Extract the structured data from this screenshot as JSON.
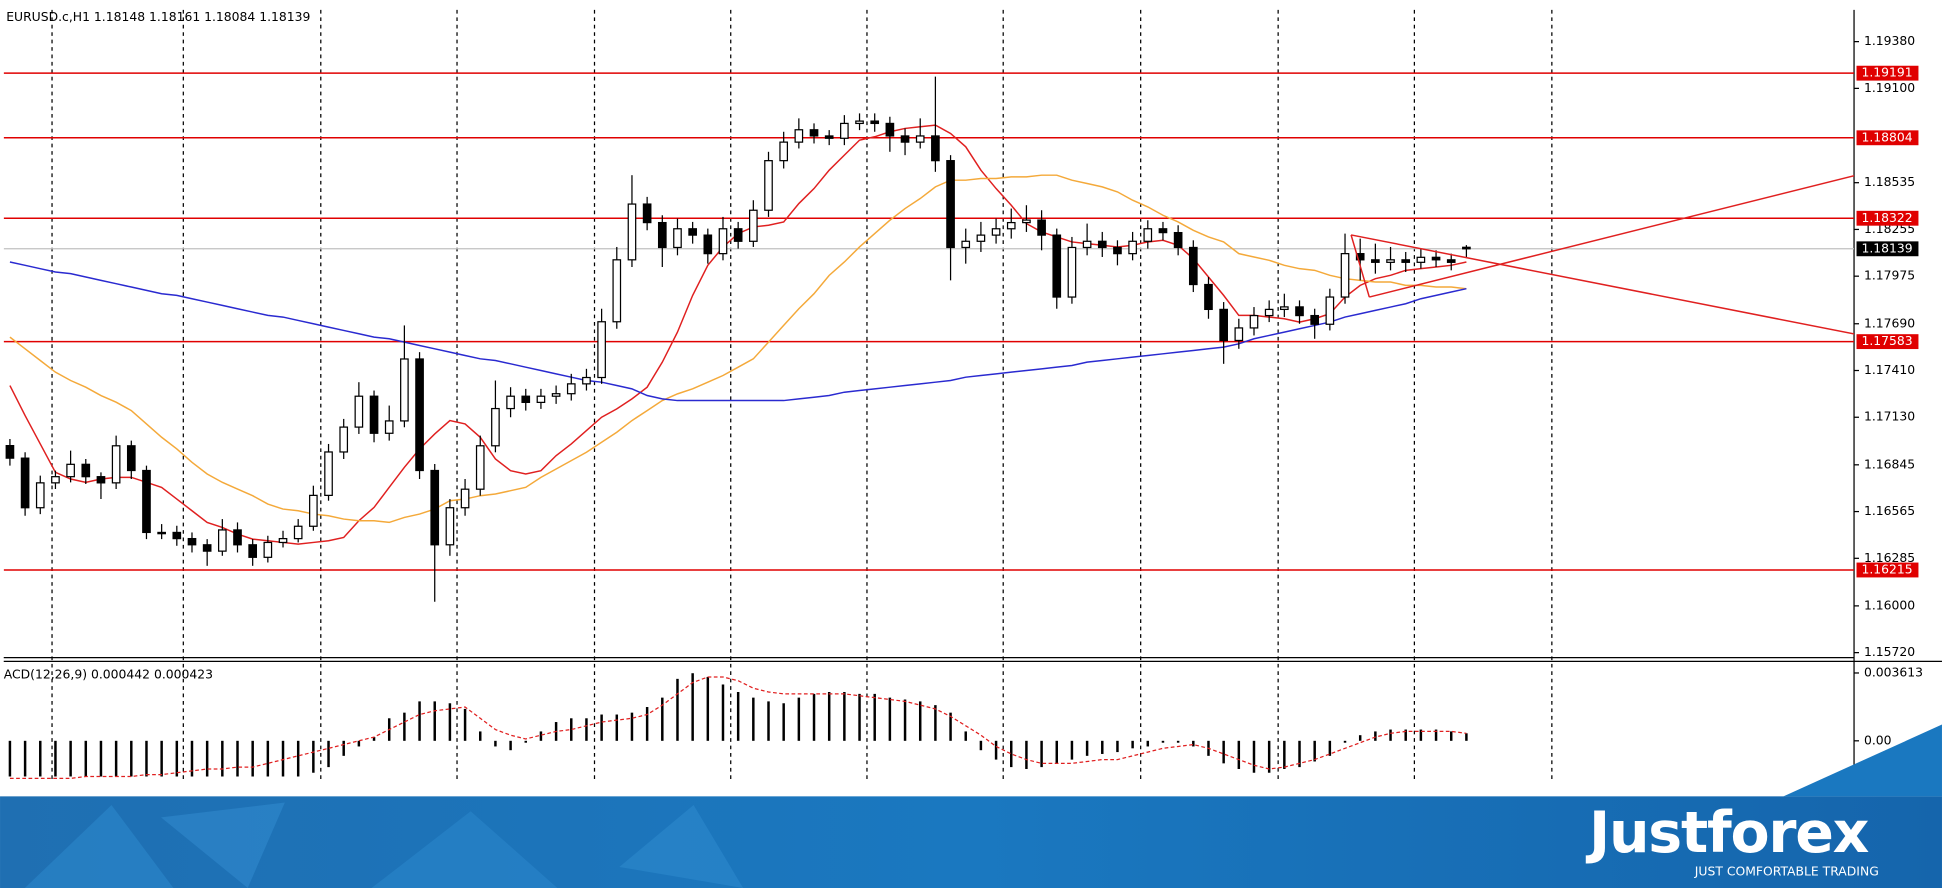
{
  "chart_data": [
    {
      "type": "candlestick",
      "title": "EURUSD.c,H1  1.18148 1.18161 1.18084 1.18139",
      "open": [
        1.1696,
        1.16885,
        1.16588,
        1.16737,
        1.16774,
        1.16848,
        1.16774,
        1.16737,
        1.16959,
        1.16811,
        1.1644,
        1.1644,
        1.16403,
        1.16366,
        1.16328,
        1.16455,
        1.16366,
        1.16291,
        1.1638,
        1.16403,
        1.16477,
        1.16662,
        1.16922,
        1.17071,
        1.17256,
        1.17034,
        1.17108,
        1.17479,
        1.16811,
        1.16366,
        1.16588,
        1.16699,
        1.16959,
        1.17182,
        1.17256,
        1.17219,
        1.17256,
        1.17271,
        1.1733,
        1.17368,
        1.17702,
        1.18073,
        1.18407,
        1.18296,
        1.18147,
        1.18259,
        1.18221,
        1.1811,
        1.18259,
        1.18184,
        1.1837,
        1.18667,
        1.18778,
        1.18852,
        1.18815,
        1.18801,
        1.1889,
        1.18904,
        1.1889,
        1.18815,
        1.18778,
        1.18815,
        1.18667,
        1.18147,
        1.18184,
        1.18221,
        1.18259,
        1.18296,
        1.18311,
        1.18221,
        1.1785,
        1.18147,
        1.18184,
        1.18147,
        1.1811,
        1.18184,
        1.18259,
        1.18236,
        1.18147,
        1.17925,
        1.17776,
        1.1759,
        1.17665,
        1.17739,
        1.17776,
        1.17791,
        1.17739,
        1.17687,
        1.1785,
        1.1811,
        1.18073,
        1.18058,
        1.18073,
        1.18058,
        1.18088,
        1.18073,
        1.18148
      ],
      "high": [
        1.17,
        1.1692,
        1.1678,
        1.1681,
        1.1693,
        1.1688,
        1.168,
        1.1702,
        1.1699,
        1.1684,
        1.1649,
        1.1648,
        1.1644,
        1.164,
        1.1652,
        1.165,
        1.164,
        1.1642,
        1.1645,
        1.1652,
        1.1672,
        1.1697,
        1.1712,
        1.1734,
        1.1729,
        1.172,
        1.1768,
        1.1752,
        1.1685,
        1.1664,
        1.1676,
        1.1702,
        1.1735,
        1.1731,
        1.173,
        1.173,
        1.1732,
        1.1739,
        1.1742,
        1.1778,
        1.1815,
        1.1858,
        1.1845,
        1.1834,
        1.1832,
        1.183,
        1.1826,
        1.1833,
        1.183,
        1.1843,
        1.1872,
        1.1884,
        1.1892,
        1.1889,
        1.1885,
        1.1894,
        1.1895,
        1.1895,
        1.1893,
        1.1886,
        1.1892,
        1.1917,
        1.187,
        1.1826,
        1.183,
        1.1832,
        1.1838,
        1.184,
        1.1837,
        1.1826,
        1.1821,
        1.1829,
        1.1824,
        1.1819,
        1.1824,
        1.1831,
        1.183,
        1.1828,
        1.1819,
        1.1797,
        1.1782,
        1.1772,
        1.1779,
        1.1783,
        1.1787,
        1.1783,
        1.1778,
        1.179,
        1.1823,
        1.182,
        1.1817,
        1.1815,
        1.1812,
        1.1814,
        1.1813,
        1.1811,
        1.18161
      ],
      "low": [
        1.1684,
        1.1654,
        1.1655,
        1.167,
        1.1674,
        1.1673,
        1.1664,
        1.167,
        1.1676,
        1.164,
        1.164,
        1.1636,
        1.1632,
        1.1624,
        1.163,
        1.1632,
        1.1624,
        1.1626,
        1.1635,
        1.1638,
        1.1645,
        1.1663,
        1.1688,
        1.1703,
        1.1698,
        1.1699,
        1.1707,
        1.1676,
        1.16025,
        1.163,
        1.1654,
        1.1666,
        1.1692,
        1.1713,
        1.1717,
        1.1718,
        1.1721,
        1.1723,
        1.1729,
        1.1733,
        1.1766,
        1.1803,
        1.1825,
        1.1803,
        1.181,
        1.1817,
        1.1805,
        1.1807,
        1.1814,
        1.1815,
        1.1833,
        1.1862,
        1.1874,
        1.1877,
        1.1876,
        1.1876,
        1.1885,
        1.1884,
        1.1872,
        1.187,
        1.1874,
        1.186,
        1.1795,
        1.1805,
        1.1812,
        1.1817,
        1.182,
        1.1824,
        1.1813,
        1.1778,
        1.1781,
        1.181,
        1.1809,
        1.1804,
        1.1807,
        1.1814,
        1.1819,
        1.181,
        1.1788,
        1.1772,
        1.1745,
        1.1754,
        1.1762,
        1.177,
        1.1773,
        1.1769,
        1.176,
        1.1765,
        1.1781,
        1.1795,
        1.1799,
        1.1801,
        1.18,
        1.1802,
        1.1803,
        1.1801,
        1.18084
      ],
      "close": [
        1.16885,
        1.16588,
        1.16737,
        1.16774,
        1.16848,
        1.16774,
        1.16737,
        1.16959,
        1.16811,
        1.1644,
        1.1644,
        1.16403,
        1.16366,
        1.16328,
        1.16455,
        1.16366,
        1.16291,
        1.1638,
        1.16403,
        1.16477,
        1.16662,
        1.16922,
        1.17071,
        1.17256,
        1.17034,
        1.17108,
        1.17479,
        1.16811,
        1.16366,
        1.16588,
        1.16699,
        1.16959,
        1.17182,
        1.17256,
        1.17219,
        1.17256,
        1.17271,
        1.1733,
        1.17368,
        1.17702,
        1.18073,
        1.18407,
        1.18296,
        1.18147,
        1.18259,
        1.18221,
        1.1811,
        1.18259,
        1.18184,
        1.1837,
        1.18667,
        1.18778,
        1.18852,
        1.18815,
        1.18801,
        1.1889,
        1.18904,
        1.1889,
        1.18815,
        1.18778,
        1.18815,
        1.18667,
        1.18147,
        1.18184,
        1.18221,
        1.18259,
        1.18296,
        1.18311,
        1.18221,
        1.1785,
        1.18147,
        1.18184,
        1.18147,
        1.1811,
        1.18184,
        1.18259,
        1.18236,
        1.18147,
        1.17925,
        1.17776,
        1.1759,
        1.17665,
        1.17739,
        1.17776,
        1.17791,
        1.17739,
        1.17687,
        1.1785,
        1.1811,
        1.18073,
        1.18058,
        1.18073,
        1.18058,
        1.18088,
        1.18073,
        1.18058,
        1.18139
      ],
      "color": "#000000",
      "ylim": [
        1.1569,
        1.1957
      ],
      "yticks": [
        {
          "value": 1.1938,
          "label": "1.19380"
        },
        {
          "value": 1.191,
          "label": "1.19100"
        },
        1.18535,
        1.18255,
        1.17975,
        {
          "value": 1.1769,
          "label": "1.17690"
        },
        {
          "value": 1.1741,
          "label": "1.17410"
        },
        {
          "value": 1.1713,
          "label": "1.17130"
        },
        1.16845,
        1.16565,
        1.16285,
        {
          "value": 1.16,
          "label": "1.16000"
        },
        {
          "value": 1.1572,
          "label": "1.15720"
        }
      ],
      "moving_averages": [
        {
          "color": "#e02020",
          "values": [
            1.1732,
            1.1714,
            1.1697,
            1.168,
            1.1676,
            1.1674,
            1.1676,
            1.1677,
            1.1677,
            1.1674,
            1.1671,
            1.1664,
            1.1657,
            1.165,
            1.1647,
            1.1643,
            1.164,
            1.1639,
            1.1638,
            1.1637,
            1.1638,
            1.1639,
            1.1641,
            1.1651,
            1.1659,
            1.1671,
            1.1683,
            1.1694,
            1.1703,
            1.1711,
            1.1709,
            1.1701,
            1.1688,
            1.1681,
            1.1679,
            1.1681,
            1.169,
            1.1697,
            1.1705,
            1.1713,
            1.1718,
            1.1724,
            1.1731,
            1.1746,
            1.1764,
            1.1786,
            1.1804,
            1.1815,
            1.1823,
            1.1827,
            1.1828,
            1.183,
            1.1841,
            1.185,
            1.1861,
            1.187,
            1.1879,
            1.1881,
            1.1884,
            1.1886,
            1.1887,
            1.1888,
            1.1883,
            1.1875,
            1.1861,
            1.185,
            1.184,
            1.1829,
            1.1824,
            1.1821,
            1.1818,
            1.1817,
            1.1816,
            1.1815,
            1.1816,
            1.1818,
            1.1819,
            1.1816,
            1.1808,
            1.1797,
            1.1786,
            1.1774,
            1.1774,
            1.1773,
            1.1772,
            1.177,
            1.1772,
            1.1775,
            1.1785,
            1.1792,
            1.1796,
            1.1798,
            1.1801,
            1.1802,
            1.1803,
            1.1804,
            1.1806
          ]
        },
        {
          "color": "#f4a93a",
          "values": [
            1.1761,
            1.1754,
            1.1747,
            1.174,
            1.1735,
            1.1731,
            1.1726,
            1.1722,
            1.1717,
            1.1709,
            1.1701,
            1.1694,
            1.1686,
            1.1679,
            1.1674,
            1.167,
            1.1666,
            1.1661,
            1.1658,
            1.1657,
            1.1655,
            1.1654,
            1.1652,
            1.1651,
            1.1651,
            1.165,
            1.1653,
            1.1655,
            1.1658,
            1.1663,
            1.1664,
            1.1666,
            1.1667,
            1.1669,
            1.1671,
            1.1677,
            1.1682,
            1.1687,
            1.1692,
            1.1698,
            1.1704,
            1.1711,
            1.1717,
            1.1723,
            1.1727,
            1.173,
            1.1734,
            1.1738,
            1.1743,
            1.1748,
            1.1758,
            1.1768,
            1.1778,
            1.1787,
            1.1798,
            1.1806,
            1.1815,
            1.1823,
            1.1831,
            1.1838,
            1.1844,
            1.1851,
            1.1855,
            1.1855,
            1.1856,
            1.1856,
            1.1857,
            1.1857,
            1.1858,
            1.1858,
            1.1855,
            1.1853,
            1.1851,
            1.1848,
            1.1843,
            1.1839,
            1.1834,
            1.183,
            1.1825,
            1.1821,
            1.1818,
            1.1811,
            1.1809,
            1.1807,
            1.1804,
            1.1802,
            1.1801,
            1.1798,
            1.1796,
            1.1795,
            1.1794,
            1.1794,
            1.1792,
            1.1792,
            1.1791,
            1.1791,
            1.179
          ]
        },
        {
          "color": "#2a2ad0",
          "values": [
            1.1806,
            1.1804,
            1.1802,
            1.18,
            1.1799,
            1.1797,
            1.1795,
            1.1793,
            1.1791,
            1.1789,
            1.1787,
            1.1786,
            1.1784,
            1.1782,
            1.178,
            1.1778,
            1.1776,
            1.1774,
            1.1773,
            1.1771,
            1.1769,
            1.1767,
            1.1765,
            1.1763,
            1.1761,
            1.176,
            1.1758,
            1.1756,
            1.1754,
            1.1752,
            1.175,
            1.1748,
            1.1747,
            1.1745,
            1.1743,
            1.1741,
            1.1739,
            1.1737,
            1.1735,
            1.1734,
            1.1732,
            1.173,
            1.1726,
            1.1724,
            1.1723,
            1.1723,
            1.1723,
            1.1723,
            1.1723,
            1.1723,
            1.1723,
            1.1723,
            1.1724,
            1.1725,
            1.1726,
            1.1728,
            1.1729,
            1.173,
            1.1731,
            1.1732,
            1.1733,
            1.1734,
            1.1735,
            1.1737,
            1.1738,
            1.1739,
            1.174,
            1.1741,
            1.1742,
            1.1743,
            1.1744,
            1.1746,
            1.1747,
            1.1748,
            1.1749,
            1.175,
            1.1751,
            1.1752,
            1.1753,
            1.1754,
            1.1755,
            1.1757,
            1.176,
            1.1762,
            1.1764,
            1.1766,
            1.1768,
            1.177,
            1.1773,
            1.1775,
            1.1777,
            1.1779,
            1.1781,
            1.1784,
            1.1786,
            1.1788,
            1.179
          ]
        }
      ],
      "levels": [
        {
          "value": 1.19191,
          "color": "#e00000"
        },
        {
          "value": 1.18804,
          "color": "#e00000"
        },
        {
          "value": 1.18322,
          "color": "#e00000"
        },
        {
          "value": 1.17583,
          "color": "#e00000"
        },
        {
          "value": 1.16215,
          "color": "#e00000"
        }
      ],
      "last_price": 1.18139,
      "trendlines": [
        {
          "x": [
            88.4,
            121.6
          ],
          "y": [
            1.18222,
            1.17628
          ],
          "color": "#e02020"
        },
        {
          "x": [
            89.6,
            121.6
          ],
          "y": [
            1.1785,
            1.18578
          ],
          "color": "#e02020"
        },
        {
          "x": [
            88.4,
            89.6
          ],
          "y": [
            1.18222,
            1.1785
          ],
          "color": "#e02020"
        }
      ]
    },
    {
      "type": "macd",
      "title": "ACD(12,26,9) 0.000442 0.000423",
      "histogram": [
        -0.0019,
        -0.0019,
        -0.0019,
        -0.0019,
        -0.0019,
        -0.0019,
        -0.0019,
        -0.0019,
        -0.0019,
        -0.0019,
        -0.0019,
        -0.0019,
        -0.0019,
        -0.0019,
        -0.0019,
        -0.0019,
        -0.0019,
        -0.0019,
        -0.0019,
        -0.0019,
        -0.0017,
        -0.0014,
        -0.0008,
        -0.0003,
        0.0002,
        0.0012,
        0.0015,
        0.0021,
        0.0021,
        0.002,
        0.0017,
        0.0005,
        -0.0003,
        -0.0005,
        -0.0001,
        0.0005,
        0.001,
        0.0012,
        0.0012,
        0.0014,
        0.0014,
        0.0015,
        0.0018,
        0.0023,
        0.0033,
        0.0036,
        0.0034,
        0.003,
        0.0026,
        0.0023,
        0.0021,
        0.002,
        0.0023,
        0.0025,
        0.0026,
        0.0026,
        0.0025,
        0.0025,
        0.0023,
        0.0022,
        0.0021,
        0.0019,
        0.0015,
        0.0005,
        -0.0005,
        -0.001,
        -0.0014,
        -0.0015,
        -0.0014,
        -0.0012,
        -0.001,
        -0.0008,
        -0.0007,
        -0.0006,
        -0.0004,
        -0.0003,
        -0.0001,
        -0.0001,
        -0.0003,
        -0.0008,
        -0.0012,
        -0.0015,
        -0.0017,
        -0.0017,
        -0.0015,
        -0.0014,
        -0.0011,
        -0.0008,
        -0.0001,
        0.0003,
        0.0005,
        0.0006,
        0.0006,
        0.0006,
        0.0006,
        0.0005,
        0.0004
      ],
      "signal": [
        -0.002,
        -0.002,
        -0.002,
        -0.002,
        -0.002,
        -0.0019,
        -0.0019,
        -0.0019,
        -0.0019,
        -0.0018,
        -0.0018,
        -0.0017,
        -0.0016,
        -0.0015,
        -0.0015,
        -0.0014,
        -0.0014,
        -0.0012,
        -0.001,
        -0.0008,
        -0.0006,
        -0.0004,
        -0.0002,
        0,
        0.0002,
        0.0006,
        0.001,
        0.0014,
        0.0016,
        0.0017,
        0.0018,
        0.0012,
        0.0006,
        0.0003,
        0.0001,
        0.0003,
        0.0005,
        0.0006,
        0.0008,
        0.001,
        0.0011,
        0.0012,
        0.0014,
        0.0019,
        0.0025,
        0.0031,
        0.0034,
        0.0034,
        0.0032,
        0.0028,
        0.0026,
        0.0025,
        0.0025,
        0.0025,
        0.0025,
        0.0025,
        0.0024,
        0.0023,
        0.0022,
        0.0021,
        0.0019,
        0.0017,
        0.0013,
        0.0008,
        0.0003,
        -0.0003,
        -0.0007,
        -0.001,
        -0.0012,
        -0.0012,
        -0.0012,
        -0.0011,
        -0.001,
        -0.001,
        -0.0008,
        -0.0006,
        -0.0004,
        -0.0003,
        -0.0002,
        -0.0004,
        -0.0007,
        -0.001,
        -0.0013,
        -0.0015,
        -0.0014,
        -0.0012,
        -0.001,
        -0.0007,
        -0.0004,
        -0.0001,
        0.0002,
        0.0004,
        0.0005,
        0.0005,
        0.0005,
        0.0005,
        0.0004
      ],
      "color": "#000000",
      "signal_color": "#e02020",
      "ylim": [
        -0.0021,
        0.0041
      ],
      "yticks": [
        0.003613,
        {
          "value": 0,
          "label": "0.00"
        }
      ]
    }
  ],
  "brand": {
    "name": "Justforex",
    "tagline": "JUST COMFORTABLE TRADING"
  }
}
